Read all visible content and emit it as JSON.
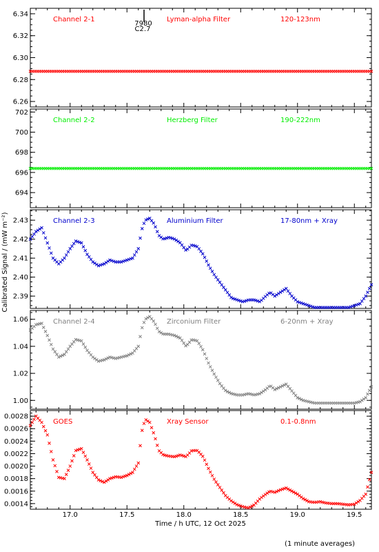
{
  "colors": {
    "red": "#ff0000",
    "green": "#00ee00",
    "blue": "#0000cc",
    "gray": "#808080",
    "axis": "#000000"
  },
  "figure": {
    "ylabel": "Calibrated Signal / (mW m⁻²)",
    "xlabel": "Time / h UTC, 12 Oct 2025",
    "footnote": "(1 minute averages)",
    "marker_annotation": {
      "x": 17.65,
      "line1": "7980",
      "line2": "C2.7"
    }
  },
  "chart_data": [
    {
      "type": "scatter",
      "channel": "Channel 2-1",
      "filter": "Lyman-alpha Filter",
      "band": "120-123nm",
      "color": "red",
      "xlim": [
        16.65,
        19.65
      ],
      "ylim": [
        6.255,
        6.345
      ],
      "yticks": [
        6.26,
        6.28,
        6.3,
        6.32,
        6.34
      ],
      "ytick_labels": [
        "6.26",
        "6.28",
        "6.30",
        "6.32",
        "6.34"
      ],
      "yminor": 0.005,
      "series": [
        {
          "x": [
            16.65,
            19.65
          ],
          "y": [
            6.2875,
            6.2875
          ]
        }
      ]
    },
    {
      "type": "scatter",
      "channel": "Channel 2-2",
      "filter": "Herzberg Filter",
      "band": "190-222nm",
      "color": "green",
      "xlim": [
        16.65,
        19.65
      ],
      "ylim": [
        692.5,
        702.3
      ],
      "yticks": [
        694,
        696,
        698,
        700,
        702
      ],
      "ytick_labels": [
        "694",
        "696",
        "698",
        "700",
        "702"
      ],
      "yminor": 0.5,
      "series": [
        {
          "x": [
            16.65,
            19.65
          ],
          "y": [
            696.4,
            696.4
          ]
        }
      ]
    },
    {
      "type": "scatter",
      "channel": "Channel 2-3",
      "filter": "Aluminium Filter",
      "band": "17-80nm + Xray",
      "color": "blue",
      "xlim": [
        16.65,
        19.65
      ],
      "ylim": [
        2.3835,
        2.4355
      ],
      "yticks": [
        2.39,
        2.4,
        2.41,
        2.42,
        2.43
      ],
      "ytick_labels": [
        "2.39",
        "2.40",
        "2.41",
        "2.42",
        "2.43"
      ],
      "yminor": 0.0025,
      "series": [
        {
          "x": [
            16.65,
            16.7,
            16.75,
            16.8,
            16.85,
            16.9,
            16.95,
            17.0,
            17.05,
            17.1,
            17.15,
            17.2,
            17.25,
            17.3,
            17.35,
            17.4,
            17.45,
            17.5,
            17.55,
            17.6,
            17.63,
            17.66,
            17.7,
            17.74,
            17.78,
            17.82,
            17.87,
            17.92,
            17.97,
            18.02,
            18.07,
            18.12,
            18.17,
            18.22,
            18.27,
            18.32,
            18.37,
            18.42,
            18.47,
            18.52,
            18.57,
            18.62,
            18.67,
            18.72,
            18.76,
            18.8,
            18.85,
            18.9,
            18.95,
            19.0,
            19.05,
            19.1,
            19.15,
            19.2,
            19.25,
            19.3,
            19.35,
            19.4,
            19.45,
            19.5,
            19.55,
            19.6,
            19.65
          ],
          "y": [
            2.42,
            2.424,
            2.426,
            2.418,
            2.41,
            2.407,
            2.41,
            2.415,
            2.419,
            2.418,
            2.412,
            2.408,
            2.406,
            2.407,
            2.409,
            2.408,
            2.408,
            2.409,
            2.41,
            2.415,
            2.425,
            2.43,
            2.431,
            2.428,
            2.422,
            2.42,
            2.421,
            2.42,
            2.418,
            2.414,
            2.417,
            2.416,
            2.412,
            2.406,
            2.401,
            2.397,
            2.393,
            2.389,
            2.388,
            2.387,
            2.388,
            2.388,
            2.387,
            2.39,
            2.392,
            2.39,
            2.392,
            2.394,
            2.39,
            2.387,
            2.386,
            2.385,
            2.384,
            2.384,
            2.384,
            2.384,
            2.384,
            2.384,
            2.384,
            2.385,
            2.386,
            2.39,
            2.396
          ]
        }
      ]
    },
    {
      "type": "scatter",
      "channel": "Channel 2-4",
      "filter": "Zirconium Filter",
      "band": "6-20nm + Xray",
      "color": "gray",
      "xlim": [
        16.65,
        19.65
      ],
      "ylim": [
        0.9935,
        1.0665
      ],
      "yticks": [
        1.0,
        1.02,
        1.04,
        1.06
      ],
      "ytick_labels": [
        "1.00",
        "1.02",
        "1.04",
        "1.06"
      ],
      "yminor": 0.005,
      "series": [
        {
          "x": [
            16.65,
            16.7,
            16.75,
            16.8,
            16.85,
            16.9,
            16.95,
            17.0,
            17.05,
            17.1,
            17.15,
            17.2,
            17.25,
            17.3,
            17.35,
            17.4,
            17.45,
            17.5,
            17.55,
            17.6,
            17.63,
            17.66,
            17.7,
            17.74,
            17.78,
            17.82,
            17.87,
            17.92,
            17.97,
            18.02,
            18.07,
            18.12,
            18.17,
            18.22,
            18.27,
            18.32,
            18.37,
            18.42,
            18.47,
            18.52,
            18.57,
            18.62,
            18.67,
            18.72,
            18.76,
            18.8,
            18.85,
            18.9,
            18.95,
            19.0,
            19.05,
            19.1,
            19.15,
            19.2,
            19.25,
            19.3,
            19.35,
            19.4,
            19.45,
            19.5,
            19.55,
            19.6,
            19.65
          ],
          "y": [
            1.052,
            1.056,
            1.057,
            1.048,
            1.038,
            1.032,
            1.034,
            1.04,
            1.045,
            1.044,
            1.037,
            1.032,
            1.029,
            1.03,
            1.032,
            1.031,
            1.032,
            1.033,
            1.035,
            1.04,
            1.053,
            1.06,
            1.062,
            1.058,
            1.051,
            1.049,
            1.049,
            1.048,
            1.046,
            1.04,
            1.045,
            1.044,
            1.037,
            1.027,
            1.019,
            1.012,
            1.007,
            1.005,
            1.004,
            1.004,
            1.005,
            1.004,
            1.005,
            1.008,
            1.011,
            1.008,
            1.01,
            1.012,
            1.007,
            1.002,
            1.0,
            0.999,
            0.998,
            0.998,
            0.998,
            0.998,
            0.998,
            0.998,
            0.998,
            0.998,
            0.999,
            1.002,
            1.01
          ]
        }
      ]
    },
    {
      "type": "scatter",
      "channel": "GOES",
      "filter": "Xray Sensor",
      "band": "0.1-0.8nm",
      "color": "red",
      "xlim": [
        16.65,
        19.65
      ],
      "ylim": [
        0.00131,
        0.00289
      ],
      "yticks": [
        0.0014,
        0.0016,
        0.0018,
        0.002,
        0.0022,
        0.0024,
        0.0026,
        0.0028
      ],
      "ytick_labels": [
        "0.0014",
        "0.0016",
        "0.0018",
        "0.0020",
        "0.0022",
        "0.0024",
        "0.0026",
        "0.0028"
      ],
      "yminor": 5e-05,
      "series": [
        {
          "x": [
            16.65,
            16.7,
            16.75,
            16.8,
            16.85,
            16.9,
            16.95,
            17.0,
            17.05,
            17.1,
            17.15,
            17.2,
            17.25,
            17.3,
            17.35,
            17.4,
            17.45,
            17.5,
            17.55,
            17.6,
            17.63,
            17.66,
            17.7,
            17.74,
            17.78,
            17.82,
            17.87,
            17.92,
            17.97,
            18.02,
            18.07,
            18.12,
            18.17,
            18.22,
            18.27,
            18.32,
            18.37,
            18.42,
            18.47,
            18.52,
            18.57,
            18.62,
            18.67,
            18.72,
            18.76,
            18.8,
            18.85,
            18.9,
            18.95,
            19.0,
            19.05,
            19.1,
            19.15,
            19.2,
            19.25,
            19.3,
            19.35,
            19.4,
            19.45,
            19.5,
            19.55,
            19.6,
            19.65
          ],
          "y": [
            0.00265,
            0.0028,
            0.0027,
            0.0025,
            0.0021,
            0.00182,
            0.0018,
            0.002,
            0.00225,
            0.00228,
            0.0021,
            0.0019,
            0.00178,
            0.00174,
            0.0018,
            0.00183,
            0.00182,
            0.00185,
            0.0019,
            0.00205,
            0.00255,
            0.00275,
            0.0027,
            0.0025,
            0.00225,
            0.00218,
            0.00216,
            0.00215,
            0.00218,
            0.00215,
            0.00225,
            0.00225,
            0.00215,
            0.00195,
            0.00178,
            0.00165,
            0.00152,
            0.00144,
            0.00138,
            0.00135,
            0.00133,
            0.00138,
            0.00148,
            0.00155,
            0.0016,
            0.00158,
            0.00162,
            0.00165,
            0.0016,
            0.00155,
            0.00148,
            0.00143,
            0.00142,
            0.00143,
            0.00141,
            0.0014,
            0.0014,
            0.00139,
            0.00138,
            0.00139,
            0.00145,
            0.00155,
            0.0019
          ]
        }
      ]
    }
  ],
  "xaxis": {
    "ticks": [
      17.0,
      17.5,
      18.0,
      18.5,
      19.0,
      19.5
    ],
    "tick_labels": [
      "17.0",
      "17.5",
      "18.0",
      "18.5",
      "19.0",
      "19.5"
    ],
    "minor": 0.1
  }
}
